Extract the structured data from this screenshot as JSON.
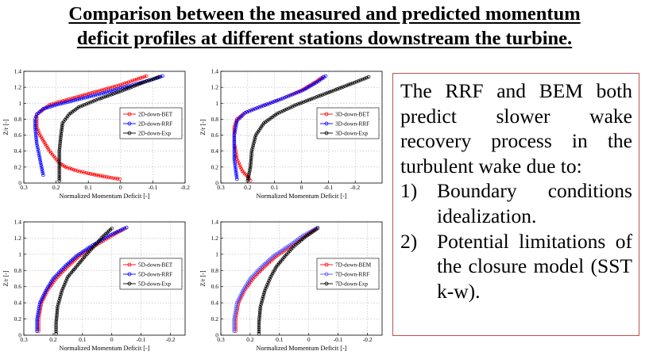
{
  "title_line1": "Comparison between the measured and predicted momentum",
  "title_line2": "deficit profiles at different stations downstream the turbine.",
  "textbox": {
    "intro": "The RRF and BEM both predict slower wake recovery process in the turbulent wake due to:",
    "items": [
      {
        "num": "1)",
        "text": "Boundary conditions idealization."
      },
      {
        "num": "2)",
        "text": "Potential limitations of the closure model (SST k-w)."
      }
    ]
  },
  "chart_data": [
    {
      "type": "line",
      "xlabel": "Normalized Momentum Deficit [-]",
      "ylabel": "Z/r [-]",
      "xlim": [
        0.3,
        -0.2
      ],
      "ylim": [
        0,
        1.4
      ],
      "xticks": [
        "0.3",
        "0.2",
        "0.1",
        "0",
        "-0.1",
        "-0.2"
      ],
      "yticks": [
        "0",
        "0.2",
        "0.4",
        "0.6",
        "0.8",
        "1",
        "1.2",
        "1.4"
      ],
      "grid": true,
      "legend": "right",
      "series": [
        {
          "name": "2D-down-BET",
          "color": "#ff0000",
          "x": [
            0.003,
            0.05,
            0.1,
            0.14,
            0.17,
            0.19,
            0.22,
            0.25,
            0.26,
            0.26,
            0.26,
            0.24,
            0.22,
            0.16,
            0.07,
            0.0,
            -0.05,
            -0.08
          ],
          "y": [
            0.05,
            0.08,
            0.12,
            0.16,
            0.2,
            0.25,
            0.4,
            0.6,
            0.7,
            0.8,
            0.86,
            0.92,
            0.98,
            1.05,
            1.15,
            1.23,
            1.3,
            1.34
          ]
        },
        {
          "name": "2D-down-RRF",
          "color": "#0000ff",
          "x": [
            0.24,
            0.25,
            0.26,
            0.265,
            0.265,
            0.26,
            0.24,
            0.2,
            0.14,
            0.06,
            -0.03,
            -0.1,
            -0.13
          ],
          "y": [
            0.1,
            0.3,
            0.5,
            0.7,
            0.8,
            0.86,
            0.93,
            0.98,
            1.04,
            1.12,
            1.22,
            1.3,
            1.34
          ]
        },
        {
          "name": "2D-down-Exp",
          "color": "#000000",
          "x": [
            0.19,
            0.19,
            0.19,
            0.185,
            0.18,
            0.16,
            0.13,
            0.07,
            0.0,
            -0.07,
            -0.12
          ],
          "y": [
            0.03,
            0.2,
            0.4,
            0.6,
            0.75,
            0.86,
            0.95,
            1.05,
            1.15,
            1.26,
            1.33
          ]
        }
      ]
    },
    {
      "type": "line",
      "xlabel": "Normalized Momentum Deficit [-]",
      "ylabel": "Z/r [-]",
      "xlim": [
        0.3,
        -0.3
      ],
      "ylim": [
        0,
        1.4
      ],
      "xticks": [
        "0.3",
        "0.2",
        "0.1",
        "0",
        "-0.1",
        "-0.2"
      ],
      "yticks": [
        "0",
        "0.2",
        "0.4",
        "0.6",
        "0.8",
        "1",
        "1.2",
        "1.4"
      ],
      "grid": true,
      "legend": "right",
      "series": [
        {
          "name": "3D-down-BET",
          "color": "#ff0000",
          "x": [
            0.19,
            0.2,
            0.22,
            0.24,
            0.25,
            0.25,
            0.24,
            0.21,
            0.15,
            0.07,
            0.0,
            -0.05,
            -0.08
          ],
          "y": [
            0.03,
            0.08,
            0.15,
            0.3,
            0.5,
            0.7,
            0.8,
            0.88,
            0.96,
            1.06,
            1.16,
            1.26,
            1.33
          ]
        },
        {
          "name": "3D-down-RRF",
          "color": "#0000ff",
          "x": [
            0.24,
            0.25,
            0.25,
            0.24,
            0.21,
            0.15,
            0.07,
            -0.01,
            -0.06,
            -0.09
          ],
          "y": [
            0.05,
            0.3,
            0.6,
            0.78,
            0.88,
            0.96,
            1.06,
            1.17,
            1.27,
            1.34
          ]
        },
        {
          "name": "3D-down-Exp",
          "color": "#000000",
          "x": [
            0.2,
            0.19,
            0.185,
            0.17,
            0.14,
            0.09,
            0.02,
            -0.05,
            -0.12,
            -0.19,
            -0.25
          ],
          "y": [
            0.03,
            0.2,
            0.4,
            0.6,
            0.75,
            0.87,
            0.98,
            1.07,
            1.16,
            1.25,
            1.33
          ]
        }
      ]
    },
    {
      "type": "line",
      "xlabel": "Normalized Momentum Deficit [-]",
      "ylabel": "Z/r [-]",
      "xlim": [
        0.3,
        -0.25
      ],
      "ylim": [
        0,
        1.4
      ],
      "xticks": [
        "0.3",
        "0.2",
        "0.1",
        "0",
        "-0.1",
        "-0.2"
      ],
      "yticks": [
        "0",
        "0.2",
        "0.4",
        "0.6",
        "0.8",
        "1",
        "1.2",
        "1.4"
      ],
      "grid": true,
      "legend": "right",
      "series": [
        {
          "name": "5D-down-BET",
          "color": "#ff0000",
          "x": [
            0.25,
            0.25,
            0.24,
            0.22,
            0.19,
            0.15,
            0.11,
            0.06,
            0.0,
            -0.05
          ],
          "y": [
            0.05,
            0.2,
            0.4,
            0.55,
            0.7,
            0.85,
            0.98,
            1.1,
            1.23,
            1.33
          ]
        },
        {
          "name": "5D-down-RRF",
          "color": "#0000ff",
          "x": [
            0.255,
            0.255,
            0.245,
            0.225,
            0.2,
            0.16,
            0.12,
            0.07,
            0.01,
            -0.05
          ],
          "y": [
            0.05,
            0.2,
            0.4,
            0.55,
            0.7,
            0.85,
            0.98,
            1.1,
            1.23,
            1.33
          ]
        },
        {
          "name": "5D-down-Exp",
          "color": "#000000",
          "x": [
            0.19,
            0.19,
            0.185,
            0.17,
            0.15,
            0.12,
            0.09,
            0.06,
            0.03,
            0.0
          ],
          "y": [
            0.02,
            0.15,
            0.35,
            0.55,
            0.72,
            0.85,
            0.98,
            1.1,
            1.22,
            1.32
          ]
        }
      ]
    },
    {
      "type": "line",
      "xlabel": "Normalized Momentum Deficit [-]",
      "ylabel": "Z/r [-]",
      "xlim": [
        0.3,
        -0.25
      ],
      "ylim": [
        0,
        1.4
      ],
      "xticks": [
        "0.3",
        "0.2",
        "0.1",
        "0",
        "-0.1",
        "-0.2"
      ],
      "yticks": [
        "0",
        "0.2",
        "0.4",
        "0.6",
        "0.8",
        "1",
        "1.2",
        "1.4"
      ],
      "grid": true,
      "legend": "right",
      "series": [
        {
          "name": "7D-down-BEM",
          "color": "#ff0000",
          "x": [
            0.25,
            0.25,
            0.24,
            0.22,
            0.19,
            0.15,
            0.11,
            0.06,
            0.01,
            -0.03
          ],
          "y": [
            0.05,
            0.2,
            0.4,
            0.55,
            0.7,
            0.85,
            0.98,
            1.1,
            1.23,
            1.33
          ]
        },
        {
          "name": "7D-down-RRF",
          "color": "#5555ff",
          "x": [
            0.255,
            0.255,
            0.245,
            0.225,
            0.2,
            0.16,
            0.12,
            0.07,
            0.02,
            -0.03
          ],
          "y": [
            0.05,
            0.2,
            0.4,
            0.55,
            0.7,
            0.85,
            0.98,
            1.1,
            1.23,
            1.33
          ]
        },
        {
          "name": "7D-down-Exp",
          "color": "#000000",
          "x": [
            0.17,
            0.17,
            0.165,
            0.15,
            0.13,
            0.11,
            0.08,
            0.05,
            0.01,
            -0.03
          ],
          "y": [
            0.02,
            0.15,
            0.35,
            0.55,
            0.72,
            0.85,
            0.98,
            1.1,
            1.22,
            1.32
          ]
        }
      ]
    }
  ]
}
